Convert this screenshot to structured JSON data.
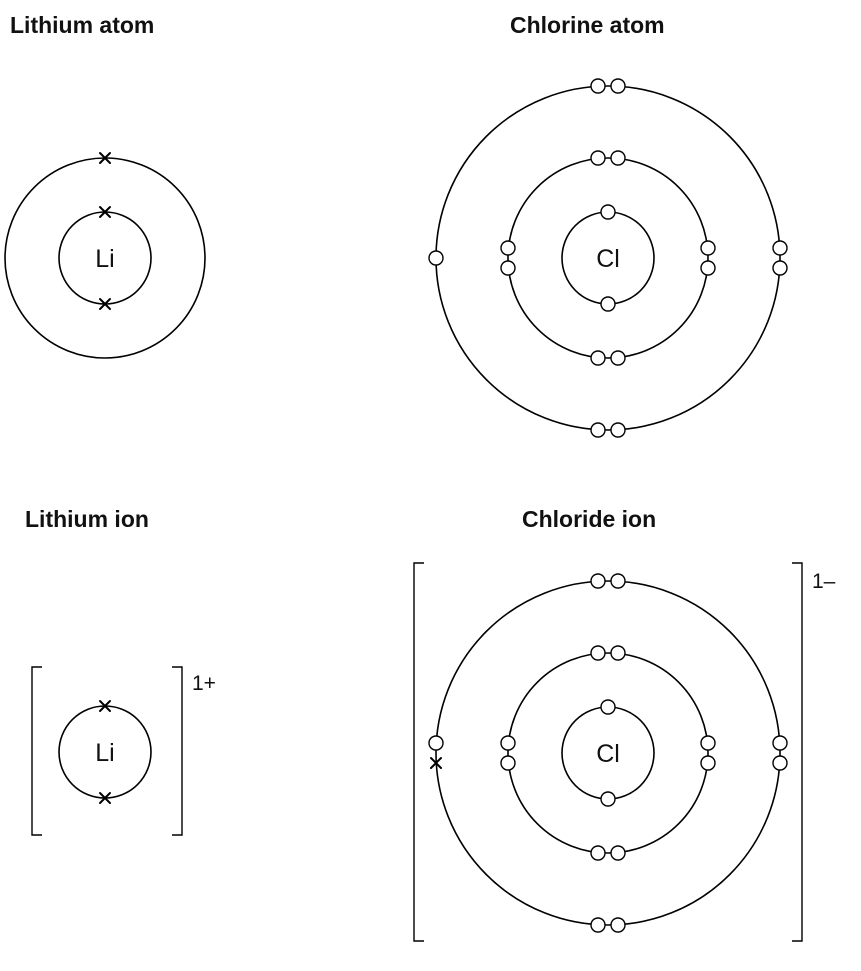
{
  "panels": {
    "li_atom": {
      "title": "Lithium atom",
      "symbol": "Li"
    },
    "cl_atom": {
      "title": "Chlorine atom",
      "symbol": "Cl"
    },
    "li_ion": {
      "title": "Lithium ion",
      "symbol": "Li",
      "charge": "1+"
    },
    "cl_ion": {
      "title": "Chloride ion",
      "symbol": "Cl",
      "charge": "1–"
    }
  },
  "electrons": {
    "lithium_atom_shells": [
      2,
      1
    ],
    "chlorine_atom_shells": [
      2,
      8,
      7
    ],
    "lithium_ion_shells": [
      2
    ],
    "chloride_ion_shells": [
      2,
      8,
      8
    ],
    "transferred_electrons": 1
  },
  "legend_symbols": {
    "lithium_electron": "cross",
    "chlorine_electron": "circle"
  }
}
